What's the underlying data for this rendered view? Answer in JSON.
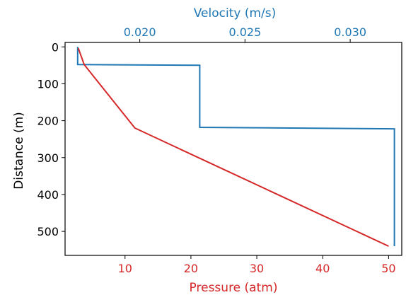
{
  "chart_data": {
    "type": "line",
    "title": "",
    "y_axis": {
      "label": "Distance (m)",
      "inverted": true,
      "range": [
        -12,
        565
      ],
      "ticks": [
        0,
        100,
        200,
        300,
        400,
        500
      ],
      "color": "#000000"
    },
    "x_bottom": {
      "label": "Pressure (atm)",
      "range": [
        0.9,
        52.0
      ],
      "ticks": [
        10,
        20,
        30,
        40,
        50
      ],
      "color": "#d62728"
    },
    "x_top": {
      "label": "Velocity (m/s)",
      "range": [
        0.01645,
        0.03245
      ],
      "ticks": [
        "0.020",
        "0.025",
        "0.030"
      ],
      "tick_values": [
        0.02,
        0.025,
        0.03
      ],
      "color": "#1f77b4"
    },
    "grid": false,
    "series": [
      {
        "axis": "x_top",
        "color": "#1f77b4",
        "x": [
          0.01705,
          0.01705,
          0.02285,
          0.02285,
          0.0321,
          0.0321
        ],
        "y": [
          0,
          48,
          50,
          218,
          222,
          540
        ]
      },
      {
        "axis": "x_bottom",
        "color": "#d62728",
        "x": [
          2.9,
          3.8,
          11.5,
          50.0
        ],
        "y": [
          3,
          48,
          220,
          540
        ]
      }
    ]
  }
}
